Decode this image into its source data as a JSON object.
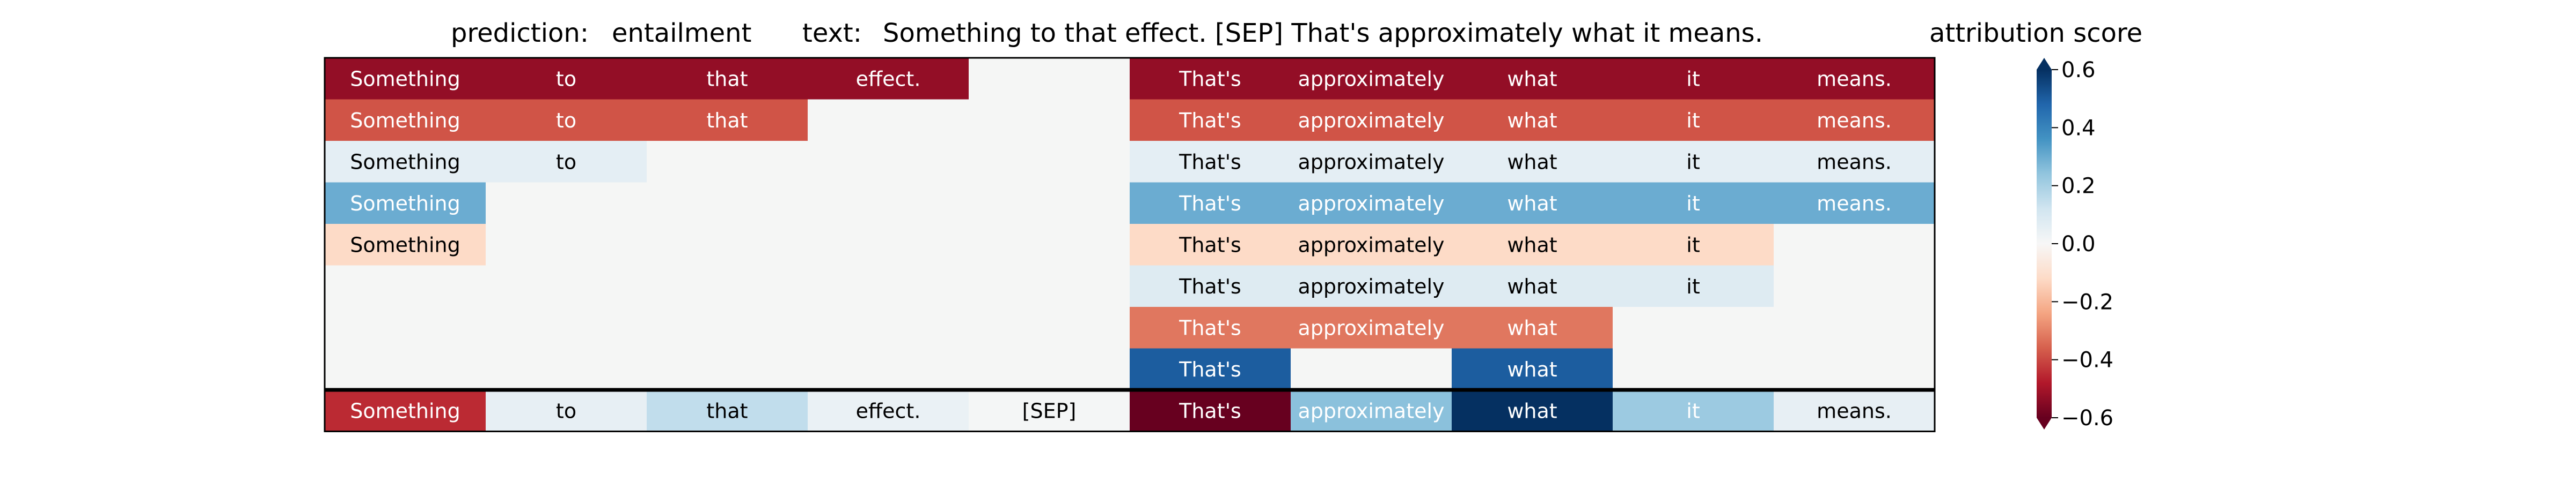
{
  "chart_data": {
    "type": "heatmap",
    "header": {
      "prediction_label": "prediction:",
      "prediction": "entailment",
      "text_label": "text:",
      "text": "Something to that effect. [SEP] That's approximately what it means.",
      "colorbar_title": "attribution score"
    },
    "tokens": [
      "Something",
      "to",
      "that",
      "effect.",
      "[SEP]",
      "That's",
      "approximately",
      "what",
      "it",
      "means."
    ],
    "rows": [
      [
        -0.53,
        -0.53,
        -0.53,
        -0.53,
        null,
        -0.53,
        -0.53,
        -0.53,
        -0.53,
        -0.53
      ],
      [
        -0.38,
        -0.38,
        -0.38,
        null,
        null,
        -0.38,
        -0.38,
        -0.38,
        -0.38,
        -0.38
      ],
      [
        0.06,
        0.06,
        null,
        null,
        null,
        0.06,
        0.06,
        0.06,
        0.06,
        0.06
      ],
      [
        0.3,
        null,
        null,
        null,
        null,
        0.3,
        0.3,
        0.3,
        0.3,
        0.3
      ],
      [
        -0.12,
        null,
        null,
        null,
        null,
        -0.12,
        -0.12,
        -0.12,
        -0.12,
        null
      ],
      [
        null,
        null,
        null,
        null,
        null,
        0.08,
        0.08,
        0.08,
        0.08,
        null
      ],
      [
        null,
        null,
        null,
        null,
        null,
        -0.32,
        -0.32,
        -0.32,
        null,
        null
      ],
      [
        null,
        null,
        null,
        null,
        null,
        0.5,
        null,
        0.5,
        null,
        null
      ]
    ],
    "summary_row": [
      -0.45,
      0.05,
      0.15,
      0.04,
      0.01,
      -0.62,
      0.25,
      0.62,
      0.22,
      0.05
    ],
    "colorbar": {
      "cmap": "RdBu",
      "vmin": -0.6,
      "vmax": 0.6,
      "ticks": [
        0.6,
        0.4,
        0.2,
        0.0,
        -0.2,
        -0.4,
        -0.6
      ],
      "tick_labels": [
        "0.6",
        "0.4",
        "0.2",
        "0.0",
        "−0.2",
        "−0.4",
        "−0.6"
      ]
    }
  }
}
